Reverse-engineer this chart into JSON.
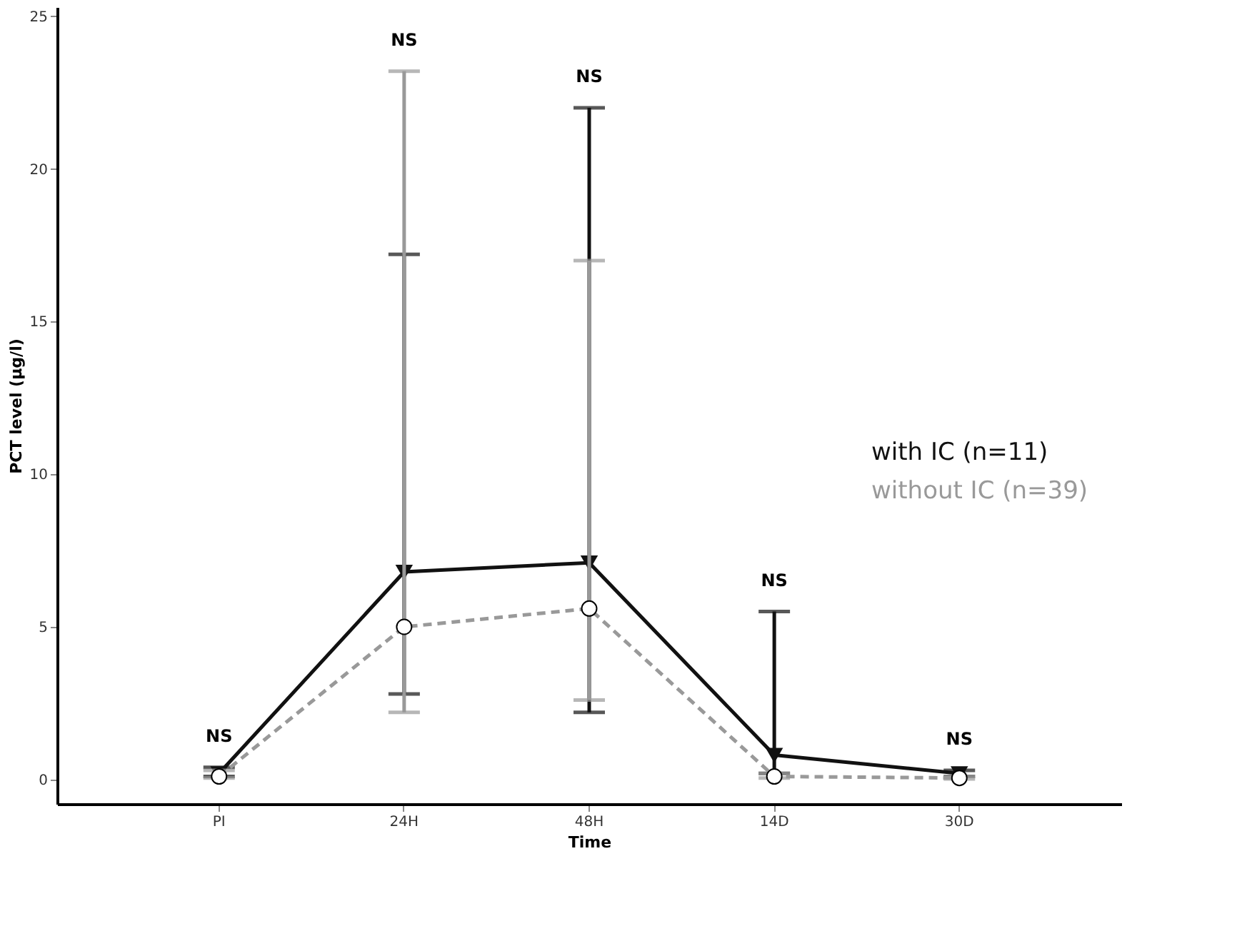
{
  "chart_data": {
    "type": "line",
    "xlabel": "Time",
    "ylabel": "PCT level (µg/l)",
    "categories": [
      "PI",
      "24H",
      "48H",
      "14D",
      "30D"
    ],
    "series": [
      {
        "name": "with IC (n=11)",
        "color": "#111111",
        "marker": "triangle",
        "line_style": "solid",
        "values": [
          0.2,
          6.8,
          7.1,
          0.8,
          0.2
        ],
        "errors": [
          [
            0.1,
            0.4
          ],
          [
            2.8,
            17.2
          ],
          [
            2.2,
            22.0
          ],
          [
            0.2,
            5.5
          ],
          [
            0.1,
            0.3
          ]
        ]
      },
      {
        "name": "without IC (n=39)",
        "color": "#999999",
        "marker": "circle",
        "line_style": "dashed",
        "values": [
          0.1,
          5.0,
          5.6,
          0.1,
          0.05
        ],
        "errors": [
          [
            0.05,
            0.3
          ],
          [
            2.2,
            23.2
          ],
          [
            2.6,
            17.0
          ],
          [
            0.05,
            0.2
          ],
          [
            0.02,
            0.1
          ]
        ]
      }
    ],
    "ylim": [
      -0.8,
      25.3
    ],
    "yticks": [
      0,
      5,
      10,
      15,
      20,
      25
    ],
    "grid": false,
    "legend": "right",
    "annotations": [
      "NS",
      "NS",
      "NS",
      "NS",
      "NS"
    ]
  }
}
